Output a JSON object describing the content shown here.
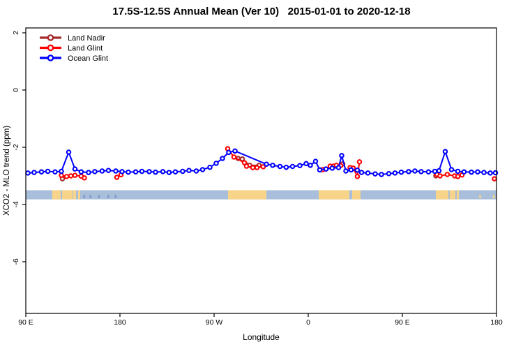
{
  "chart_data": {
    "type": "line",
    "title": "17.5S-12.5S Annual Mean (Ver 10)   2015-01-01 to 2020-12-18",
    "xlabel": "Longitude",
    "ylabel": "XCO2 - MLO trend (ppm)",
    "x_axis": {
      "note": "longitude axis wraps eastward: 90E -> 180 -> 90W -> 0 -> 90E -> 180, 450 degrees total",
      "ticks": [
        {
          "deg": 0,
          "label": "90 E"
        },
        {
          "deg": 90,
          "label": "180"
        },
        {
          "deg": 180,
          "label": "90 W"
        },
        {
          "deg": 270,
          "label": "0"
        },
        {
          "deg": 360,
          "label": "90 E"
        },
        {
          "deg": 450,
          "label": "180"
        }
      ]
    },
    "y_axis": {
      "ticks": [
        {
          "value": 2,
          "label": "2"
        },
        {
          "value": 0,
          "label": "0"
        },
        {
          "value": -2,
          "label": "-2"
        },
        {
          "value": -4,
          "label": "-4"
        },
        {
          "value": -6,
          "label": "-6"
        }
      ],
      "range": [
        -7.8,
        2.2
      ],
      "grid": false
    },
    "legend": {
      "position": "top-left-inside",
      "entries": [
        {
          "label": "Land Nadir",
          "color": "#A52A2A"
        },
        {
          "label": "Land Glint",
          "color": "#FF0000"
        },
        {
          "label": "Ocean Glint",
          "color": "#0000FF"
        }
      ]
    },
    "map_band": {
      "description": "world-map latitude strip 17.5S-12.5S drawn across plot",
      "y_range_ppm": [
        -3.5,
        -3.82
      ],
      "ocean_color": "#A8BEDA",
      "land_color": "#F7D48A",
      "islet_color": "#7E99C8",
      "land_patches_deg": [
        [
          25.3,
          33.3
        ],
        [
          34.7,
          44.7
        ],
        [
          45.3,
          48
        ],
        [
          50,
          52
        ],
        [
          193.3,
          230
        ],
        [
          280,
          309.3
        ],
        [
          312,
          320
        ],
        [
          392,
          404
        ],
        [
          405.3,
          410.7
        ],
        [
          412,
          414
        ]
      ],
      "islet_marks_deg": [
        55,
        61,
        69,
        78,
        85
      ],
      "islet_specks_deg": [
        433.5,
        446.5
      ]
    },
    "series": [
      {
        "name": "Land Nadir",
        "color": "#A52A2A",
        "segments": [
          [
            [
              35,
              -3.1
            ]
          ],
          [
            [
              203,
              -2.39
            ],
            [
              207,
              -2.41
            ],
            [
              214,
              -2.63
            ],
            [
              223,
              -2.63
            ]
          ],
          [
            [
              303,
              -2.58
            ]
          ],
          [
            [
              392,
              -3.0
            ]
          ]
        ]
      },
      {
        "name": "Land Glint",
        "color": "#FF0000",
        "segments": [
          [
            [
              34,
              -2.98
            ],
            [
              39,
              -3.02
            ],
            [
              43,
              -3.0
            ],
            [
              47,
              -2.98
            ],
            [
              53,
              -3.01
            ],
            [
              56,
              -3.07
            ]
          ],
          [
            [
              87,
              -3.05
            ],
            [
              91,
              -2.96
            ]
          ],
          [
            [
              193,
              -2.05
            ],
            [
              199,
              -2.34
            ],
            [
              209,
              -2.54
            ],
            [
              211,
              -2.66
            ],
            [
              217,
              -2.71
            ],
            [
              221,
              -2.71
            ],
            [
              227,
              -2.68
            ]
          ],
          [
            [
              284,
              -2.78
            ],
            [
              287,
              -2.76
            ],
            [
              291,
              -2.66
            ],
            [
              294,
              -2.66
            ],
            [
              297,
              -2.63
            ],
            [
              301,
              -2.64
            ]
          ],
          [
            [
              310,
              -2.71
            ],
            [
              313,
              -2.73
            ],
            [
              317,
              -3.02
            ],
            [
              319,
              -2.51
            ]
          ],
          [
            [
              393,
              -2.95
            ],
            [
              396,
              -3.0
            ],
            [
              403,
              -2.95
            ],
            [
              410,
              -3.0
            ],
            [
              413,
              -3.02
            ],
            [
              417,
              -2.97
            ]
          ],
          [
            [
              448,
              -3.1
            ]
          ]
        ]
      },
      {
        "name": "Ocean Glint",
        "color": "#0000FF",
        "segments": [
          [
            [
              2,
              -2.9
            ],
            [
              8,
              -2.88
            ],
            [
              15,
              -2.86
            ],
            [
              21,
              -2.84
            ],
            [
              28,
              -2.86
            ],
            [
              34,
              -2.84
            ],
            [
              41,
              -2.17
            ],
            [
              47,
              -2.76
            ],
            [
              53,
              -2.86
            ],
            [
              60,
              -2.88
            ],
            [
              66,
              -2.85
            ],
            [
              73,
              -2.83
            ],
            [
              79,
              -2.81
            ],
            [
              86,
              -2.83
            ],
            [
              92,
              -2.85
            ],
            [
              98,
              -2.87
            ],
            [
              105,
              -2.86
            ],
            [
              111,
              -2.84
            ],
            [
              118,
              -2.85
            ],
            [
              124,
              -2.87
            ],
            [
              131,
              -2.85
            ],
            [
              137,
              -2.88
            ],
            [
              143,
              -2.86
            ],
            [
              150,
              -2.84
            ],
            [
              156,
              -2.81
            ],
            [
              163,
              -2.83
            ],
            [
              169,
              -2.78
            ],
            [
              176,
              -2.7
            ],
            [
              182,
              -2.56
            ],
            [
              188,
              -2.39
            ],
            [
              194,
              -2.18
            ],
            [
              200,
              -2.13
            ],
            [
              230,
              -2.59
            ],
            [
              236,
              -2.63
            ],
            [
              243,
              -2.67
            ],
            [
              249,
              -2.7
            ],
            [
              255,
              -2.67
            ],
            [
              262,
              -2.64
            ],
            [
              268,
              -2.57
            ],
            [
              272,
              -2.63
            ],
            [
              277,
              -2.49
            ],
            [
              281,
              -2.79
            ],
            [
              287,
              -2.76
            ],
            [
              293,
              -2.73
            ],
            [
              299,
              -2.71
            ],
            [
              302,
              -2.29
            ],
            [
              306,
              -2.83
            ],
            [
              311,
              -2.79
            ],
            [
              317,
              -2.8
            ],
            [
              321,
              -2.88
            ],
            [
              327,
              -2.9
            ],
            [
              334,
              -2.93
            ],
            [
              340,
              -2.95
            ],
            [
              347,
              -2.92
            ],
            [
              353,
              -2.9
            ],
            [
              359,
              -2.87
            ],
            [
              366,
              -2.85
            ],
            [
              372,
              -2.83
            ],
            [
              378,
              -2.85
            ],
            [
              385,
              -2.86
            ],
            [
              391,
              -2.84
            ],
            [
              395,
              -2.82
            ],
            [
              401,
              -2.15
            ],
            [
              407,
              -2.78
            ],
            [
              413,
              -2.84
            ],
            [
              419,
              -2.86
            ],
            [
              426,
              -2.87
            ],
            [
              432,
              -2.86
            ],
            [
              438,
              -2.88
            ],
            [
              444,
              -2.9
            ],
            [
              449,
              -2.89
            ]
          ]
        ]
      }
    ]
  }
}
